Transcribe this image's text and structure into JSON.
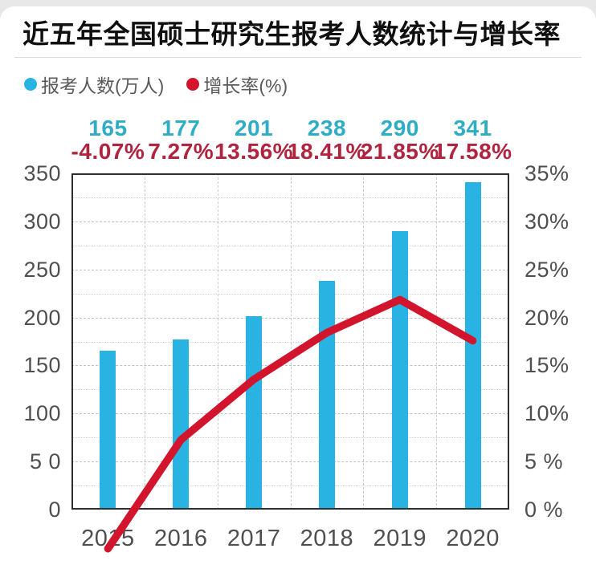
{
  "title": "近五年全国硕士研究生报考人数统计与增长率",
  "legend": {
    "applicants_label": "报考人数(万人)",
    "growth_label": "增长率(%)"
  },
  "colors": {
    "bar": "#29b3e2",
    "line": "#d2152c",
    "count_label": "#2fadc6",
    "growth_label": "#b0243f",
    "axis_text": "#4f4f4f"
  },
  "chart_data": {
    "type": "bar",
    "subtype": "combo: bars (left axis) + line (right axis), dual y-axes",
    "title": "近五年全国硕士研究生报考人数统计与增长率",
    "categories": [
      "2015",
      "2016",
      "2017",
      "2018",
      "2019",
      "2020"
    ],
    "series": [
      {
        "name": "报考人数(万人)",
        "chart": "bar",
        "axis": "left",
        "values": [
          165,
          177,
          201,
          238,
          290,
          341
        ],
        "labels": [
          "165",
          "177",
          "201",
          "238",
          "290",
          "341"
        ]
      },
      {
        "name": "增长率(%)",
        "chart": "line",
        "axis": "right",
        "values": [
          -4.07,
          7.27,
          13.56,
          18.41,
          21.85,
          17.58
        ],
        "labels": [
          "-4.07%",
          "7.27%",
          "13.56%",
          "18.41%",
          "21.85%",
          "17.58%"
        ]
      }
    ],
    "left_axis": {
      "min": 0,
      "max": 350,
      "step": 50,
      "tick_labels": [
        "350",
        "300",
        "250",
        "200",
        "150",
        "100",
        "5 0",
        "0"
      ]
    },
    "right_axis": {
      "min": 0,
      "max": 35,
      "step": 5,
      "tick_labels": [
        "35%",
        "30%",
        "25%",
        "20%",
        "15%",
        "10%",
        "5 %",
        "0 %"
      ]
    },
    "grid": {
      "horizontal_step_left_units": 25,
      "vertical": "category boundaries",
      "style": "dashed"
    },
    "legend_position": "top-left"
  }
}
